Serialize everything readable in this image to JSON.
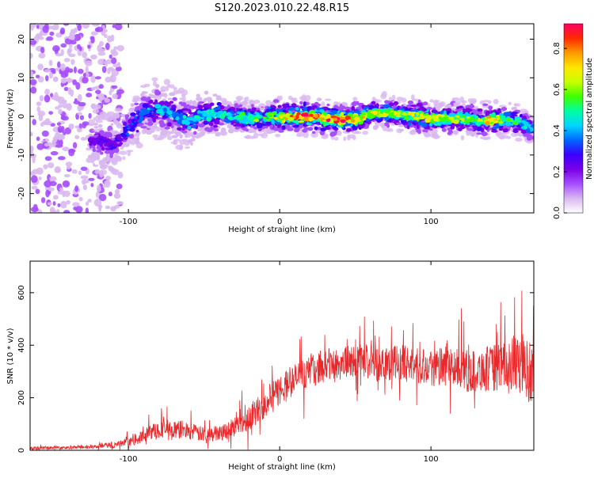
{
  "title": "S120.2023.010.22.48.R15",
  "colors": {
    "snr_line": "#e8282a",
    "axis": "#000000",
    "colormap": [
      "#ffffff",
      "#d9b8f0",
      "#a64dff",
      "#7a00e6",
      "#3a00ff",
      "#0066ff",
      "#00d5ff",
      "#00ffa0",
      "#40ff00",
      "#c8ff00",
      "#ffe600",
      "#ff9900",
      "#ff2a00",
      "#ff0066"
    ]
  },
  "chart_data": [
    {
      "type": "heatmap",
      "title": "S120.2023.010.22.48.R15",
      "xlabel": "Height of straight line (km)",
      "ylabel": "Frequency (Hz)",
      "xlim": [
        -165,
        168
      ],
      "ylim": [
        -25,
        24
      ],
      "xticks": [
        -100,
        0,
        100
      ],
      "xtick_labels": [
        "-100",
        "0",
        "100"
      ],
      "yticks": [
        20,
        10,
        0,
        -10,
        -20
      ],
      "ytick_labels": [
        "20",
        "10",
        "0",
        "-10",
        "-20"
      ],
      "grid": false,
      "colorbar": {
        "label": "Normalized spectral amplitude",
        "range": [
          0.0,
          0.92
        ],
        "ticks": [
          0.0,
          0.2,
          0.4,
          0.6,
          0.8
        ],
        "tick_labels": [
          "0.0",
          "0.2",
          "0.4",
          "0.6",
          "0.8"
        ]
      },
      "trace": {
        "description_points_x_km": [
          -120,
          -110,
          -100,
          -90,
          -80,
          -70,
          -60,
          -50,
          -40,
          -30,
          -20,
          -10,
          0,
          10,
          20,
          30,
          40,
          50,
          60,
          70,
          80,
          90,
          100,
          110,
          120,
          130,
          140,
          150,
          160,
          165
        ],
        "center_freq_hz": [
          -6.5,
          -7.5,
          -3.0,
          1.0,
          2.0,
          0.5,
          -1.5,
          0.5,
          0.5,
          0.0,
          -0.5,
          -0.5,
          0.0,
          0.0,
          0.0,
          -0.5,
          -1.0,
          -0.5,
          0.5,
          1.0,
          0.5,
          0.0,
          -0.5,
          -0.5,
          -0.5,
          -1.0,
          -1.0,
          -0.5,
          -1.5,
          -3.0
        ],
        "peak_amplitude": [
          0.25,
          0.3,
          0.35,
          0.4,
          0.45,
          0.45,
          0.45,
          0.5,
          0.5,
          0.55,
          0.6,
          0.6,
          0.75,
          0.85,
          0.9,
          0.85,
          0.9,
          0.8,
          0.7,
          0.7,
          0.65,
          0.7,
          0.8,
          0.7,
          0.65,
          0.6,
          0.8,
          0.6,
          0.5,
          0.45
        ]
      }
    },
    {
      "type": "line",
      "xlabel": "Height of straight line (km)",
      "ylabel": "SNR (10 * v/v)",
      "xlim": [
        -165,
        168
      ],
      "ylim": [
        0,
        720
      ],
      "xticks": [
        -100,
        0,
        100
      ],
      "xtick_labels": [
        "-100",
        "0",
        "100"
      ],
      "yticks": [
        0,
        200,
        400,
        600
      ],
      "ytick_labels": [
        "0",
        "200",
        "400",
        "600"
      ],
      "grid": false,
      "series": [
        {
          "x": [
            -165,
            -150,
            -140,
            -130,
            -120,
            -110,
            -100,
            -95,
            -90,
            -85,
            -80,
            -75,
            -70,
            -65,
            -60,
            -55,
            -50,
            -45,
            -40,
            -35,
            -30,
            -25,
            -20,
            -15,
            -10,
            -5,
            0,
            5,
            10,
            15,
            20,
            25,
            30,
            35,
            40,
            45,
            50,
            55,
            60,
            65,
            70,
            75,
            80,
            85,
            90,
            95,
            100,
            105,
            110,
            115,
            120,
            125,
            130,
            135,
            140,
            145,
            150,
            155,
            160,
            165,
            168
          ],
          "y": [
            8,
            10,
            10,
            12,
            15,
            20,
            30,
            40,
            55,
            70,
            80,
            85,
            75,
            80,
            75,
            65,
            60,
            60,
            70,
            75,
            90,
            110,
            125,
            150,
            180,
            200,
            230,
            250,
            270,
            290,
            300,
            310,
            320,
            330,
            330,
            335,
            340,
            335,
            335,
            330,
            340,
            335,
            330,
            330,
            320,
            325,
            320,
            310,
            320,
            315,
            305,
            300,
            300,
            310,
            310,
            320,
            320,
            330,
            320,
            300,
            300
          ],
          "spread": [
            6,
            6,
            6,
            6,
            8,
            12,
            15,
            20,
            25,
            30,
            35,
            35,
            35,
            35,
            35,
            30,
            30,
            30,
            30,
            35,
            40,
            45,
            50,
            55,
            60,
            60,
            60,
            60,
            60,
            60,
            60,
            60,
            60,
            65,
            65,
            65,
            65,
            65,
            70,
            70,
            70,
            70,
            70,
            70,
            70,
            70,
            75,
            75,
            75,
            75,
            80,
            80,
            85,
            85,
            90,
            90,
            95,
            100,
            110,
            120,
            120
          ]
        }
      ]
    }
  ]
}
